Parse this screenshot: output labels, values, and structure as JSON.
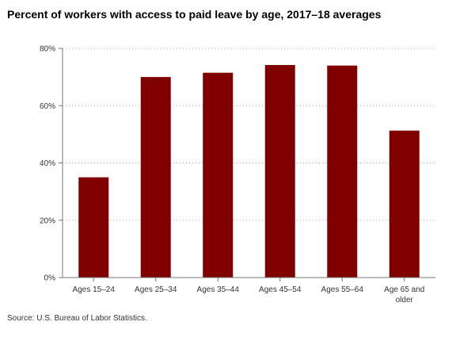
{
  "chart_data": {
    "type": "bar",
    "title": "Percent of workers with access to paid leave by age, 2017–18 averages",
    "xlabel": "",
    "ylabel": "",
    "categories": [
      [
        "Ages 15–24"
      ],
      [
        "Ages 25–34"
      ],
      [
        "Ages 35–44"
      ],
      [
        "Ages 45–54"
      ],
      [
        "Ages 55–64"
      ],
      [
        "Age 65 and",
        "older"
      ]
    ],
    "values": [
      35,
      70,
      71.5,
      74.2,
      74,
      51.3
    ],
    "ylim": [
      0,
      80
    ],
    "yticks": [
      0,
      20,
      40,
      60,
      80
    ],
    "ytick_labels": [
      "0%",
      "20%",
      "40%",
      "60%",
      "80%"
    ],
    "grid": "horizontal dotted",
    "legend": "none",
    "bar_color": "#800000",
    "source": "Source: U.S. Bureau of Labor Statistics."
  }
}
